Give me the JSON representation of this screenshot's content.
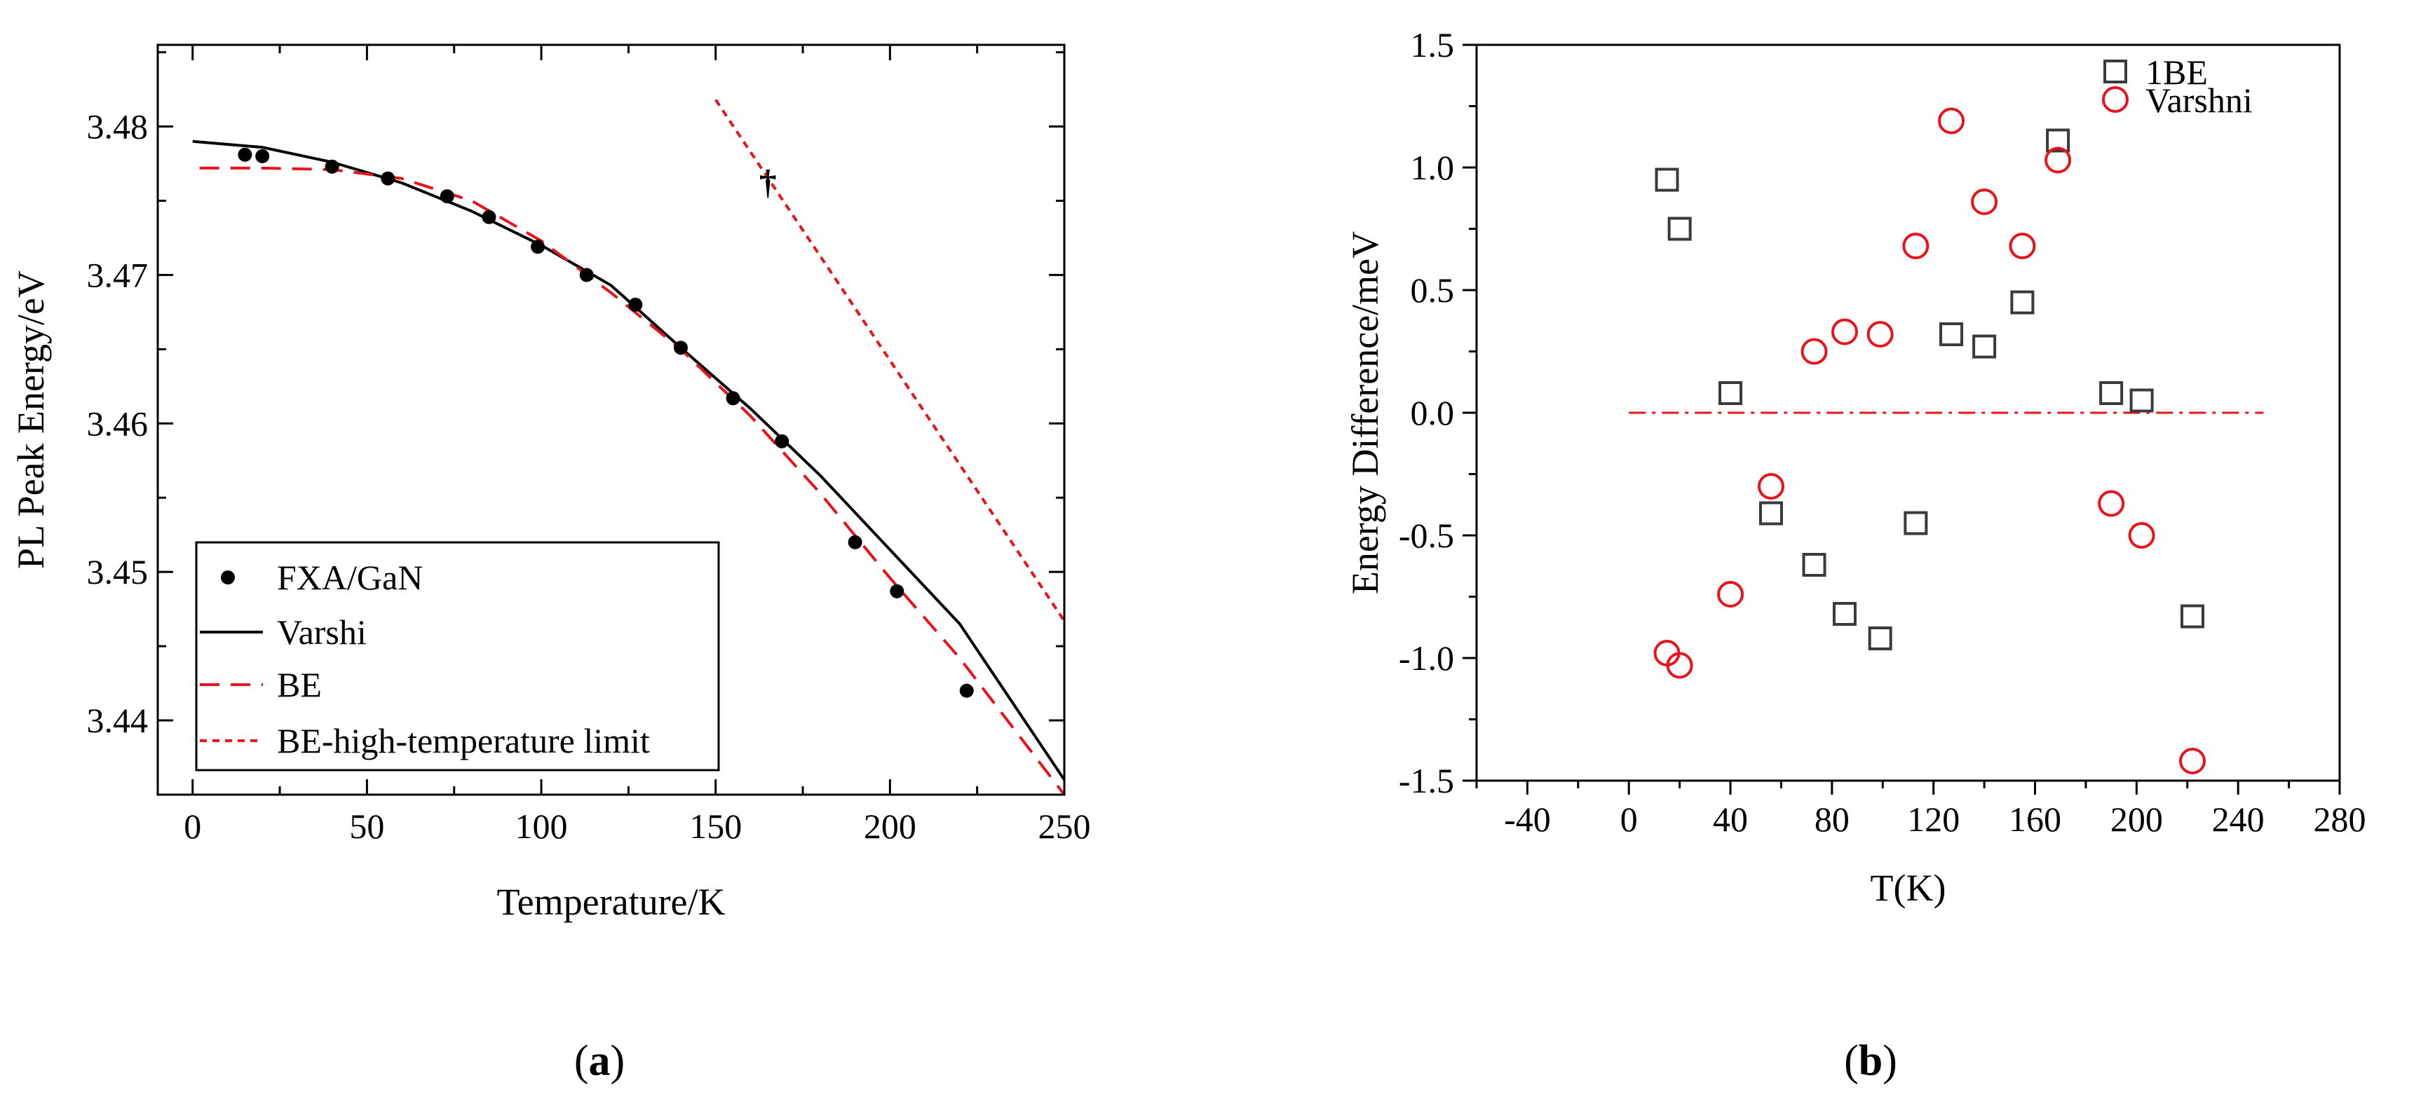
{
  "colors": {
    "black": "#000000",
    "red": "#e8141b",
    "gray": "#3a3a3a"
  },
  "chart_data": [
    {
      "type": "scatter",
      "title": "",
      "xlabel": "Temperature/K",
      "ylabel": "PL Peak Energy/eV",
      "xlim": [
        -10,
        250
      ],
      "ylim": [
        3.435,
        3.4855
      ],
      "xticks": [
        "0",
        "50",
        "100",
        "150",
        "200",
        "250"
      ],
      "yticks": [
        "3.44",
        "3.45",
        "3.46",
        "3.47",
        "3.48"
      ],
      "panel_label": "a",
      "legend_position": "bottom-left",
      "series": [
        {
          "name": "FXA/GaN",
          "kind": "scatter",
          "x": [
            15,
            20,
            40,
            56,
            73,
            85,
            99,
            113,
            127,
            140,
            155,
            169,
            190,
            202,
            222
          ],
          "y": [
            3.4781,
            3.478,
            3.4773,
            3.4765,
            3.4753,
            3.4739,
            3.4719,
            3.47,
            3.468,
            3.4651,
            3.4617,
            3.4588,
            3.452,
            3.4487,
            3.442
          ]
        },
        {
          "name": "Varshi",
          "kind": "line",
          "style": "solid",
          "x": [
            0,
            20,
            40,
            60,
            80,
            100,
            120,
            140,
            160,
            180,
            200,
            220,
            250
          ],
          "y": [
            3.479,
            3.4786,
            3.4776,
            3.4762,
            3.4743,
            3.472,
            3.4693,
            3.4651,
            3.461,
            3.4565,
            3.4515,
            3.4465,
            3.436
          ]
        },
        {
          "name": "BE",
          "kind": "line",
          "style": "dashed",
          "x": [
            2,
            20,
            40,
            60,
            80,
            100,
            120,
            140,
            160,
            180,
            200,
            220,
            250
          ],
          "y": [
            3.4772,
            3.4772,
            3.4771,
            3.4765,
            3.475,
            3.4723,
            3.4688,
            3.465,
            3.4605,
            3.4553,
            3.4496,
            3.4442,
            3.435
          ]
        },
        {
          "name": "BE-high-temperature limit",
          "kind": "line",
          "style": "dotted",
          "x": [
            150,
            250
          ],
          "y": [
            3.4818,
            3.4467
          ]
        }
      ],
      "annotations": [
        {
          "text": "†",
          "x": 165,
          "y": 3.4765
        }
      ]
    },
    {
      "type": "scatter",
      "title": "",
      "xlabel": "T(K)",
      "ylabel": "Energy Difference/meV",
      "xlim": [
        -60,
        280
      ],
      "ylim": [
        -1.5,
        1.5
      ],
      "xticks": [
        "-40",
        "0",
        "40",
        "80",
        "120",
        "160",
        "200",
        "240",
        "280"
      ],
      "yticks": [
        "-1.5",
        "-1.0",
        "-0.5",
        "0.0",
        "0.5",
        "1.0",
        "1.5"
      ],
      "panel_label": "b",
      "legend_position": "top-right",
      "series": [
        {
          "name": "1BE",
          "kind": "scatter",
          "marker": "square",
          "x": [
            15,
            20,
            40,
            56,
            73,
            85,
            99,
            113,
            127,
            140,
            155,
            169,
            190,
            202,
            222
          ],
          "y": [
            0.95,
            0.75,
            0.08,
            -0.41,
            -0.62,
            -0.82,
            -0.92,
            -0.45,
            0.32,
            0.27,
            0.45,
            1.11,
            0.08,
            0.05,
            -0.83
          ]
        },
        {
          "name": "Varshni",
          "kind": "scatter",
          "marker": "circle",
          "x": [
            15,
            20,
            40,
            56,
            73,
            85,
            99,
            113,
            127,
            140,
            155,
            169,
            190,
            202,
            222
          ],
          "y": [
            -0.98,
            -1.03,
            -0.74,
            -0.3,
            0.25,
            0.33,
            0.32,
            0.68,
            1.19,
            0.86,
            0.68,
            1.03,
            -0.37,
            -0.5,
            -1.42
          ]
        }
      ],
      "reference_line": {
        "y": 0,
        "x_range": [
          0,
          250
        ],
        "style": "dash-dot"
      }
    }
  ]
}
